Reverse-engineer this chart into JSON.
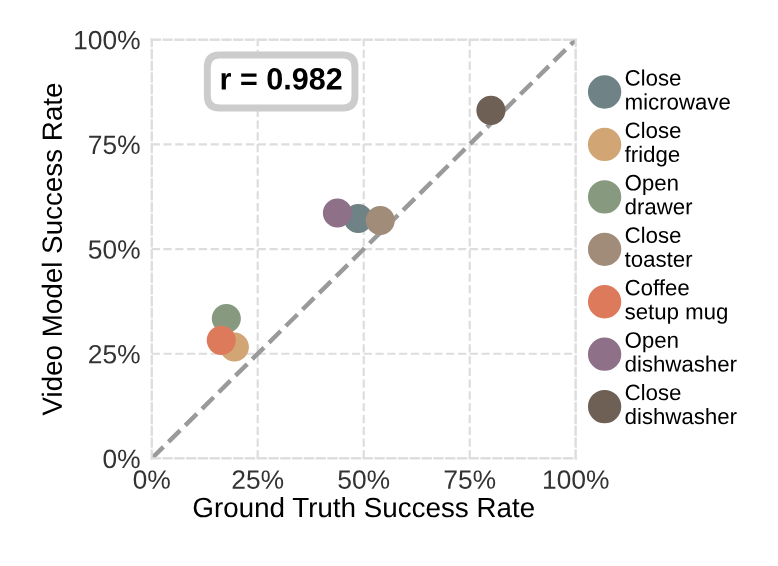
{
  "chart_data": {
    "type": "scatter",
    "xlabel": "Ground Truth Success Rate",
    "ylabel": "Video Model Success Rate",
    "xlim": [
      0,
      100
    ],
    "ylim": [
      0,
      100
    ],
    "xticks": [
      {
        "value": 0,
        "label": "0%"
      },
      {
        "value": 25,
        "label": "25%"
      },
      {
        "value": 50,
        "label": "50%"
      },
      {
        "value": 75,
        "label": "75%"
      },
      {
        "value": 100,
        "label": "100%"
      }
    ],
    "yticks": [
      {
        "value": 0,
        "label": "0%"
      },
      {
        "value": 25,
        "label": "25%"
      },
      {
        "value": 50,
        "label": "50%"
      },
      {
        "value": 75,
        "label": "75%"
      },
      {
        "value": 100,
        "label": "100%"
      }
    ],
    "grid": true,
    "legend": "right",
    "marker": "circle",
    "annotations": [
      "r = 0.982"
    ],
    "series": [
      {
        "type": "line",
        "x": [
          0,
          100
        ],
        "values": [
          0,
          100
        ],
        "color": "#9a9a9a",
        "line_style": "dashed",
        "marker": "none"
      },
      {
        "name": "Close\nmicrowave",
        "color": "#6f8286",
        "x": [
          48.7
        ],
        "values": [
          57.3
        ]
      },
      {
        "name": "Close\nfridge",
        "color": "#d1a574",
        "x": [
          19.5
        ],
        "values": [
          26.6
        ]
      },
      {
        "name": "Open\ndrawer",
        "color": "#879a80",
        "x": [
          17.6
        ],
        "values": [
          33.4
        ]
      },
      {
        "name": "Close\ntoaster",
        "color": "#a08c78",
        "x": [
          53.9
        ],
        "values": [
          56.8
        ]
      },
      {
        "name": "Coffee\nsetup mug",
        "color": "#dd7a5c",
        "x": [
          16.4
        ],
        "values": [
          28.2
        ]
      },
      {
        "name": "Open\ndishwasher",
        "color": "#8e7088",
        "x": [
          43.8
        ],
        "values": [
          58.6
        ]
      },
      {
        "name": "Close\ndishwasher",
        "color": "#6e6054",
        "x": [
          80
        ],
        "values": [
          83.1
        ]
      }
    ]
  }
}
